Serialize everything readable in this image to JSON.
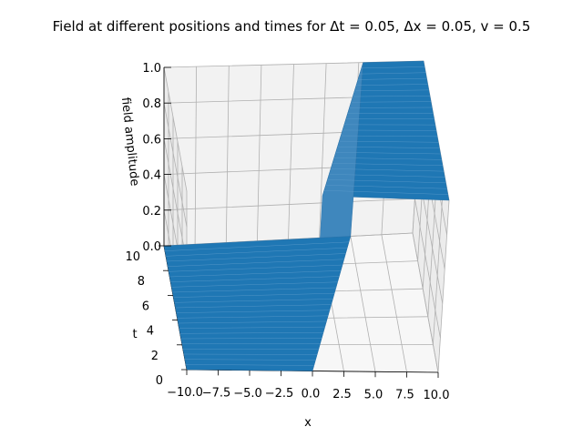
{
  "chart_data": {
    "type": "surface",
    "title": "Field at different positions and times for Δt = 0.05, Δx = 0.05,  v = 0.5",
    "xlabel": "x",
    "ylabel": "t",
    "zlabel": "field amplitude",
    "xlim": [
      -10,
      10
    ],
    "ylim": [
      0,
      10
    ],
    "zlim": [
      0,
      1
    ],
    "x_ticks": [
      "−10.0",
      "−7.5",
      "−5.0",
      "−2.5",
      "0.0",
      "2.5",
      "5.0",
      "7.5",
      "10.0"
    ],
    "y_ticks": [
      "0",
      "2",
      "4",
      "6",
      "8",
      "10"
    ],
    "z_ticks": [
      "0.0",
      "0.2",
      "0.4",
      "0.6",
      "0.8",
      "1.0"
    ],
    "grid": true,
    "colors": {
      "surface": "#1f77b4",
      "pane": "#f2f2f2",
      "grid": "#b0b0b0"
    },
    "surface": {
      "description_values": "step front: field = 0 for x < v*t, field = 1 for x > v*t",
      "front_x_at_t": [
        {
          "t": 0,
          "x": 0
        },
        {
          "t": 10,
          "x": 5
        }
      ],
      "low_value": 0,
      "high_value": 1
    }
  }
}
